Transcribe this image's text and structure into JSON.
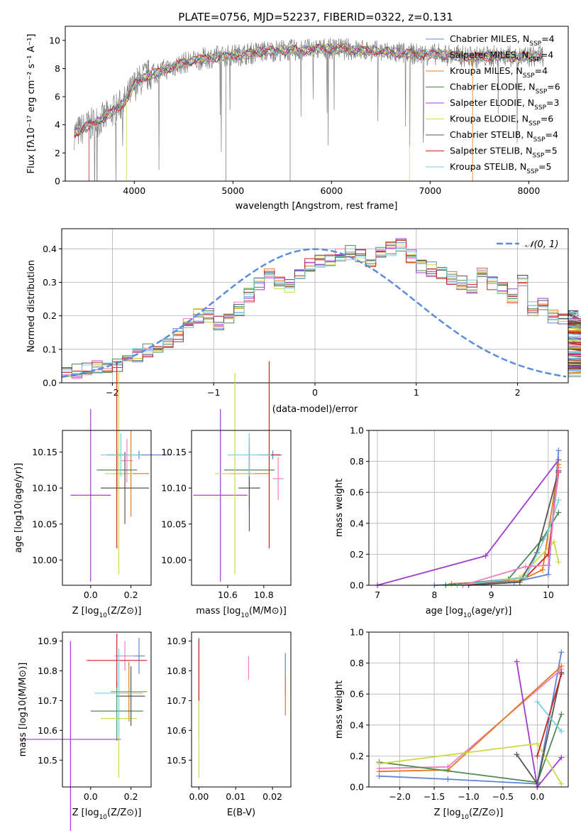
{
  "colors": {
    "chabrier_miles": "#5e84d8",
    "salpeter_miles": "#f07ec4",
    "kroupa_miles": "#e07b1a",
    "chabrier_elodie": "#4f8a58",
    "salpeter_elodie": "#a03bd0",
    "kroupa_elodie": "#ccd94a",
    "chabrier_stelib": "#555555",
    "salpeter_stelib": "#cc2222",
    "kroupa_stelib": "#74d3e0",
    "data": "#808080",
    "normal": "#5b8ddb"
  },
  "chart_data": [
    {
      "type": "line",
      "title": "PLATE=0756, MJD=52237, FIBERID=0322, z=0.131",
      "xlabel": "wavelength [Angstrom, rest frame]",
      "ylabel": "Flux [fλ10⁻¹⁷ erg cm⁻² s⁻¹ A⁻¹]",
      "xlim": [
        3300,
        8400
      ],
      "ylim": [
        0,
        11
      ],
      "xticks": [
        "4000",
        "5000",
        "6000",
        "7000",
        "8000"
      ],
      "yticks": [
        "0",
        "2",
        "4",
        "6",
        "8",
        "10"
      ],
      "spectrum": {
        "x": [
          3390,
          3450,
          3550,
          3700,
          3900,
          4000,
          4100,
          4300,
          4500,
          4700,
          4900,
          5100,
          5300,
          5500,
          5700,
          5900,
          6100,
          6300,
          6500,
          6700,
          6900,
          7100,
          7300,
          7450,
          7700,
          7900,
          8100
        ],
        "y": [
          3.4,
          3.6,
          4.0,
          4.5,
          5.6,
          6.8,
          7.4,
          7.9,
          8.4,
          8.7,
          8.9,
          9.0,
          9.2,
          9.3,
          9.3,
          9.4,
          9.4,
          9.3,
          9.2,
          9.1,
          9.0,
          9.0,
          8.9,
          8.8,
          8.9,
          8.8,
          8.9
        ]
      },
      "legend_position": "top-right",
      "series": [
        {
          "name": "Chabrier MILES, N_SSP=4",
          "label_main": "Chabrier MILES, N",
          "label_sub": "SSP",
          "label_tail": "=4",
          "color_key": "chabrier_miles"
        },
        {
          "name": "Salpeter MILES, N_SSP=4",
          "label_main": "Salpeter MILES, N",
          "label_sub": "SSP",
          "label_tail": "=4",
          "color_key": "salpeter_miles"
        },
        {
          "name": "Kroupa MILES, N_SSP=4",
          "label_main": "Kroupa MILES, N",
          "label_sub": "SSP",
          "label_tail": "=4",
          "color_key": "kroupa_miles"
        },
        {
          "name": "Chabrier ELODIE, N_SSP=6",
          "label_main": "Chabrier ELODIE, N",
          "label_sub": "SSP",
          "label_tail": "=6",
          "color_key": "chabrier_elodie"
        },
        {
          "name": "Salpeter ELODIE, N_SSP=3",
          "label_main": "Salpeter ELODIE, N",
          "label_sub": "SSP",
          "label_tail": "=3",
          "color_key": "salpeter_elodie"
        },
        {
          "name": "Kroupa ELODIE, N_SSP=6",
          "label_main": "Kroupa ELODIE, N",
          "label_sub": "SSP",
          "label_tail": "=6",
          "color_key": "kroupa_elodie"
        },
        {
          "name": "Chabrier STELIB, N_SSP=4",
          "label_main": "Chabrier STELIB, N",
          "label_sub": "SSP",
          "label_tail": "=4",
          "color_key": "chabrier_stelib"
        },
        {
          "name": "Salpeter STELIB, N_SSP=5",
          "label_main": "Salpeter STELIB, N",
          "label_sub": "SSP",
          "label_tail": "=5",
          "color_key": "salpeter_stelib"
        },
        {
          "name": "Kroupa STELIB, N_SSP=5",
          "label_main": "Kroupa STELIB, N",
          "label_sub": "SSP",
          "label_tail": "=5",
          "color_key": "kroupa_stelib"
        }
      ]
    },
    {
      "type": "line",
      "xlabel": "(data-model)/error",
      "ylabel": "Normed distribution",
      "xlim": [
        -2.5,
        2.5
      ],
      "ylim": [
        0,
        0.46
      ],
      "xticks": [
        "−2",
        "−1",
        "0",
        "1",
        "2"
      ],
      "yticks": [
        "0.0",
        "0.1",
        "0.2",
        "0.3",
        "0.4"
      ],
      "grid": true,
      "legend_position": "top-right",
      "legend": "𝒩(0, 1)",
      "histogram_bins": {
        "start": -2.5,
        "width": 0.1,
        "mean_values": [
          0.03,
          0.035,
          0.04,
          0.045,
          0.05,
          0.055,
          0.07,
          0.085,
          0.1,
          0.11,
          0.12,
          0.14,
          0.17,
          0.2,
          0.2,
          0.18,
          0.2,
          0.22,
          0.26,
          0.3,
          0.32,
          0.3,
          0.29,
          0.32,
          0.35,
          0.36,
          0.37,
          0.38,
          0.39,
          0.38,
          0.35,
          0.39,
          0.4,
          0.41,
          0.38,
          0.35,
          0.34,
          0.33,
          0.31,
          0.3,
          0.29,
          0.32,
          0.3,
          0.28,
          0.26,
          0.3,
          0.22,
          0.24,
          0.2,
          0.19,
          0.19,
          0.2,
          0.17,
          0.17,
          0.16,
          0.14,
          0.13,
          0.1,
          0.09,
          0.08,
          0.07,
          0.06,
          0.05,
          0.05,
          0.04
        ]
      }
    },
    {
      "type": "scatter",
      "xlabel": "Z [log10(Z/Z⊙)]",
      "xlabel_main": "Z [log",
      "xlabel_sub": "10",
      "xlabel_tail": "(Z/Z⊙)]",
      "ylabel": "age [log10(age/yr)]",
      "xlim": [
        -0.14,
        0.3
      ],
      "ylim": [
        9.965,
        10.18
      ],
      "xticks": [
        "0.0",
        "0.2"
      ],
      "yticks": [
        "10.00",
        "10.05",
        "10.10",
        "10.15"
      ],
      "points": [
        {
          "x": 0.24,
          "y": 10.146,
          "xerr": 0.16,
          "yerr": 0.006,
          "color_key": "chabrier_miles"
        },
        {
          "x": 0.18,
          "y": 10.138,
          "xerr": 0.03,
          "yerr": 0.03,
          "color_key": "salpeter_miles"
        },
        {
          "x": 0.2,
          "y": 10.12,
          "xerr": 0.09,
          "yerr": 0.06,
          "color_key": "kroupa_miles"
        },
        {
          "x": 0.13,
          "y": 10.125,
          "xerr": 0.1,
          "yerr": 0.03,
          "color_key": "chabrier_elodie"
        },
        {
          "x": 0.0,
          "y": 10.09,
          "xerr": 0.1,
          "yerr": 0.12,
          "color_key": "salpeter_elodie"
        },
        {
          "x": 0.14,
          "y": 10.12,
          "xerr": 0.07,
          "yerr": 0.14,
          "color_key": "kroupa_elodie"
        },
        {
          "x": 0.17,
          "y": 10.1,
          "xerr": 0.12,
          "yerr": 0.05,
          "color_key": "chabrier_stelib"
        },
        {
          "x": 0.13,
          "y": 10.146,
          "xerr": 0.05,
          "yerr": 0.13,
          "color_key": "salpeter_stelib"
        },
        {
          "x": 0.15,
          "y": 10.146,
          "xerr": 0.1,
          "yerr": 0.03,
          "color_key": "kroupa_stelib"
        }
      ]
    },
    {
      "type": "scatter",
      "xlabel": "mass [log10(M/M⊙)]",
      "xlabel_main": "mass [log",
      "xlabel_sub": "10",
      "xlabel_tail": "(M/M⊙)]",
      "xlim": [
        10.4,
        10.95
      ],
      "ylim": [
        9.965,
        10.18
      ],
      "xticks": [
        "10.6",
        "10.8"
      ],
      "yticks": [
        "10.00",
        "10.05",
        "10.10",
        "10.15"
      ],
      "points": [
        {
          "x": 10.85,
          "y": 10.146,
          "xerr": 0.05,
          "yerr": 0.006,
          "color_key": "chabrier_miles"
        },
        {
          "x": 10.88,
          "y": 10.113,
          "xerr": 0.03,
          "yerr": 0.03,
          "color_key": "salpeter_miles"
        },
        {
          "x": 10.72,
          "y": 10.12,
          "xerr": 0.11,
          "yerr": 0.05,
          "color_key": "kroupa_miles"
        },
        {
          "x": 10.72,
          "y": 10.125,
          "xerr": 0.14,
          "yerr": 0.05,
          "color_key": "chabrier_elodie"
        },
        {
          "x": 10.56,
          "y": 10.09,
          "xerr": 0.15,
          "yerr": 0.12,
          "color_key": "salpeter_elodie"
        },
        {
          "x": 10.64,
          "y": 10.12,
          "xerr": 0.11,
          "yerr": 0.14,
          "color_key": "kroupa_elodie"
        },
        {
          "x": 10.72,
          "y": 10.1,
          "xerr": 0.06,
          "yerr": 0.06,
          "color_key": "chabrier_stelib"
        },
        {
          "x": 10.83,
          "y": 10.146,
          "xerr": 0.06,
          "yerr": 0.13,
          "color_key": "salpeter_stelib"
        },
        {
          "x": 10.72,
          "y": 10.146,
          "xerr": 0.12,
          "yerr": 0.03,
          "color_key": "kroupa_stelib"
        }
      ]
    },
    {
      "type": "line",
      "xlabel": "age [log10(age/yr)]",
      "xlabel_main": "age  [log",
      "xlabel_sub": "10",
      "xlabel_tail": "(age/yr)]",
      "ylabel": "mass weight",
      "xlim": [
        6.85,
        10.35
      ],
      "ylim": [
        0,
        1
      ],
      "xticks": [
        "7",
        "8",
        "9",
        "10"
      ],
      "yticks": [
        "0.0",
        "0.2",
        "0.4",
        "0.6",
        "0.8",
        "1.0"
      ],
      "grid": true,
      "series": [
        {
          "color_key": "salpeter_elodie",
          "x": [
            7.0,
            8.9,
            10.18
          ],
          "y": [
            0.0,
            0.19,
            0.81
          ]
        },
        {
          "color_key": "chabrier_miles",
          "x": [
            8.0,
            9.4,
            10.0,
            10.18
          ],
          "y": [
            0.0,
            0.02,
            0.07,
            0.87
          ]
        },
        {
          "color_key": "kroupa_miles",
          "x": [
            8.3,
            9.5,
            9.9,
            10.18
          ],
          "y": [
            0.01,
            0.03,
            0.1,
            0.78
          ]
        },
        {
          "color_key": "chabrier_elodie",
          "x": [
            8.2,
            9.3,
            9.9,
            10.18
          ],
          "y": [
            0.0,
            0.04,
            0.3,
            0.47
          ]
        },
        {
          "color_key": "kroupa_elodie",
          "x": [
            8.5,
            9.5,
            10.1,
            10.18
          ],
          "y": [
            0.0,
            0.05,
            0.28,
            0.15
          ]
        },
        {
          "color_key": "chabrier_stelib",
          "x": [
            8.6,
            9.5,
            9.8,
            10.18
          ],
          "y": [
            0.0,
            0.02,
            0.21,
            0.74
          ]
        },
        {
          "color_key": "salpeter_stelib",
          "x": [
            8.5,
            9.6,
            10.0,
            10.18
          ],
          "y": [
            0.0,
            0.05,
            0.2,
            0.73
          ]
        },
        {
          "color_key": "kroupa_stelib",
          "x": [
            8.4,
            9.6,
            10.0,
            10.18
          ],
          "y": [
            0.0,
            0.05,
            0.35,
            0.55
          ]
        },
        {
          "color_key": "salpeter_miles",
          "x": [
            8.5,
            9.6,
            10.0,
            10.18
          ],
          "y": [
            0.0,
            0.12,
            0.13,
            0.76
          ]
        }
      ]
    },
    {
      "type": "scatter",
      "xlabel": "Z [log10(Z/Z⊙)]",
      "xlabel_main": "Z [log",
      "xlabel_sub": "10",
      "xlabel_tail": "(Z/Z⊙)]",
      "ylabel": "mass [log10(M/M⊙)]",
      "xlim": [
        -0.14,
        0.3
      ],
      "ylim": [
        10.41,
        10.93
      ],
      "xticks": [
        "0.0",
        "0.2"
      ],
      "yticks": [
        "10.5",
        "10.6",
        "10.7",
        "10.8",
        "10.9"
      ],
      "points": [
        {
          "x": 0.24,
          "y": 10.85,
          "xerr": 0.03,
          "yerr": 0.06,
          "color_key": "chabrier_miles"
        },
        {
          "x": 0.17,
          "y": 10.85,
          "xerr": 0.05,
          "yerr": 0.05,
          "color_key": "salpeter_miles"
        },
        {
          "x": 0.19,
          "y": 10.73,
          "xerr": 0.09,
          "yerr": 0.1,
          "color_key": "kroupa_miles"
        },
        {
          "x": 0.13,
          "y": 10.665,
          "xerr": 0.13,
          "yerr": 0.1,
          "color_key": "chabrier_elodie"
        },
        {
          "x": -0.1,
          "y": 10.57,
          "xerr": 0.25,
          "yerr": 0.33,
          "color_key": "salpeter_elodie"
        },
        {
          "x": 0.14,
          "y": 10.64,
          "xerr": 0.09,
          "yerr": 0.2,
          "color_key": "kroupa_elodie"
        },
        {
          "x": 0.2,
          "y": 10.715,
          "xerr": 0.07,
          "yerr": 0.1,
          "color_key": "chabrier_stelib"
        },
        {
          "x": 0.13,
          "y": 10.835,
          "xerr": 0.15,
          "yerr": 0.09,
          "color_key": "salpeter_stelib"
        },
        {
          "x": 0.14,
          "y": 10.725,
          "xerr": 0.12,
          "yerr": 0.15,
          "color_key": "kroupa_stelib"
        }
      ]
    },
    {
      "type": "scatter",
      "xlabel": "E(B-V)",
      "xlim": [
        -0.002,
        0.025
      ],
      "ylim": [
        10.41,
        10.93
      ],
      "xticks": [
        "0.00",
        "0.01",
        "0.02"
      ],
      "yticks": [
        "10.5",
        "10.6",
        "10.7",
        "10.8",
        "10.9"
      ],
      "points": [
        {
          "x": 0.0,
          "y": 10.85,
          "yerr": 0.06,
          "color_key": "chabrier_stelib"
        },
        {
          "x": 0.0,
          "y": 10.72,
          "yerr": 0.15,
          "color_key": "kroupa_stelib"
        },
        {
          "x": 0.0,
          "y": 10.64,
          "yerr": 0.2,
          "color_key": "kroupa_elodie"
        },
        {
          "x": 0.0,
          "y": 10.8,
          "yerr": 0.1,
          "color_key": "salpeter_stelib"
        },
        {
          "x": 0.0135,
          "y": 10.81,
          "yerr": 0.04,
          "color_key": "salpeter_miles"
        },
        {
          "x": 0.0235,
          "y": 10.79,
          "yerr": 0.07,
          "color_key": "chabrier_miles"
        },
        {
          "x": 0.0235,
          "y": 10.72,
          "yerr": 0.07,
          "color_key": "kroupa_miles"
        }
      ]
    },
    {
      "type": "line",
      "xlabel": "Z [log10(Z/Z⊙)]",
      "xlabel_main": "Z [log",
      "xlabel_sub": "10",
      "xlabel_tail": "(Z/Z⊙)]",
      "ylabel": "mass weight",
      "xlim": [
        -2.45,
        0.45
      ],
      "ylim": [
        0,
        1
      ],
      "xticks": [
        "−2.0",
        "−1.5",
        "−1.0",
        "−0.5",
        "0.0"
      ],
      "yticks": [
        "0.0",
        "0.2",
        "0.4",
        "0.6",
        "0.8",
        "1.0"
      ],
      "grid": true,
      "series": [
        {
          "color_key": "chabrier_miles",
          "x": [
            -2.3,
            -1.3,
            0.0,
            0.35
          ],
          "y": [
            0.07,
            0.05,
            0.02,
            0.87
          ]
        },
        {
          "color_key": "salpeter_miles",
          "x": [
            -2.3,
            -1.3,
            0.35
          ],
          "y": [
            0.12,
            0.13,
            0.76
          ]
        },
        {
          "color_key": "kroupa_miles",
          "x": [
            -2.3,
            -1.3,
            0.35
          ],
          "y": [
            0.1,
            0.11,
            0.78
          ]
        },
        {
          "color_key": "chabrier_elodie",
          "x": [
            -2.3,
            0.0,
            0.35
          ],
          "y": [
            0.16,
            0.03,
            0.47
          ]
        },
        {
          "color_key": "salpeter_elodie",
          "x": [
            -0.3,
            0.0,
            0.35
          ],
          "y": [
            0.81,
            0.0,
            0.19
          ]
        },
        {
          "color_key": "kroupa_elodie",
          "x": [
            -2.3,
            0.0,
            0.35
          ],
          "y": [
            0.15,
            0.28,
            0.02
          ]
        },
        {
          "color_key": "chabrier_stelib",
          "x": [
            -0.3,
            0.0,
            0.35
          ],
          "y": [
            0.21,
            0.02,
            0.74
          ]
        },
        {
          "color_key": "salpeter_stelib",
          "x": [
            0.0,
            0.35
          ],
          "y": [
            0.2,
            0.73
          ]
        },
        {
          "color_key": "kroupa_stelib",
          "x": [
            0.0,
            0.35
          ],
          "y": [
            0.55,
            0.36
          ]
        }
      ]
    }
  ]
}
